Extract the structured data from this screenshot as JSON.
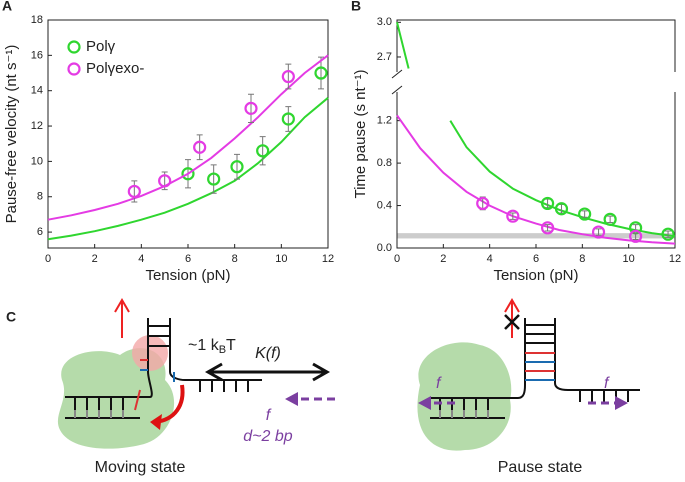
{
  "chart_data": [
    {
      "type": "scatter",
      "panel_label": "A",
      "xlabel": "Tension (pN)",
      "ylabel": "Pause-free velocity (nt s⁻¹)",
      "xlim": [
        0,
        12
      ],
      "xticks": [
        0,
        2,
        4,
        6,
        8,
        10,
        12
      ],
      "ylim": [
        5.1,
        18
      ],
      "yticks": [
        6,
        8,
        10,
        12,
        14,
        16,
        18
      ],
      "legend": "upper left",
      "series": [
        {
          "name": "Polγ",
          "color": "#2fd62f",
          "x": [
            6.0,
            7.1,
            8.1,
            9.2,
            10.3,
            11.7
          ],
          "values": [
            9.3,
            9.0,
            9.7,
            10.6,
            12.4,
            15.0
          ],
          "errors": [
            0.8,
            0.8,
            0.7,
            0.8,
            0.7,
            0.9
          ],
          "fit_x": [
            0,
            1,
            2,
            3,
            4,
            5,
            6,
            7,
            8,
            9,
            10,
            11,
            12
          ],
          "fit_values": [
            5.6,
            5.8,
            6.05,
            6.35,
            6.7,
            7.1,
            7.6,
            8.2,
            8.9,
            9.9,
            11.1,
            12.5,
            13.6
          ]
        },
        {
          "name": "Polγexo-",
          "color": "#e43be4",
          "x": [
            3.7,
            5.0,
            6.5,
            8.7,
            10.3
          ],
          "values": [
            8.3,
            8.9,
            10.8,
            13.0,
            14.8
          ],
          "errors": [
            0.6,
            0.5,
            0.7,
            0.8,
            0.7
          ],
          "fit_x": [
            0,
            1,
            2,
            3,
            4,
            5,
            6,
            7,
            8,
            9,
            10,
            11,
            12
          ],
          "fit_values": [
            6.7,
            6.95,
            7.25,
            7.6,
            8.05,
            8.6,
            9.3,
            10.2,
            11.3,
            12.5,
            13.8,
            15.0,
            16.0
          ]
        }
      ]
    },
    {
      "type": "scatter",
      "panel_label": "B",
      "xlabel": "Tension (pN)",
      "ylabel": "Time pause (s nt⁻¹)",
      "xlim": [
        0,
        12
      ],
      "xticks": [
        0,
        2,
        4,
        6,
        8,
        10,
        12
      ],
      "ylim": [
        0,
        1.47
      ],
      "yticks": [
        {
          "value": 0,
          "label": "0.0"
        },
        0.4,
        0.8,
        1.2
      ],
      "y_break": {
        "ylim": [
          2.57,
          3.02
        ],
        "yticks": [
          2.7,
          {
            "value": 3,
            "label": "3.0"
          }
        ]
      },
      "band": [
        0.09,
        0.14
      ],
      "band_color": "#cccccc",
      "series": [
        {
          "color": "#2fd62f",
          "x": [
            6.5,
            7.1,
            8.1,
            9.2,
            10.3,
            11.7
          ],
          "values": [
            0.42,
            0.37,
            0.32,
            0.27,
            0.19,
            0.13
          ],
          "errors": [
            0.04,
            0.04,
            0.03,
            0.03,
            0.03,
            0.03
          ],
          "fit_x": [
            0,
            0.25,
            0.5,
            1.4,
            2.3,
            3,
            4,
            5,
            6,
            7,
            8,
            9,
            10,
            11,
            12
          ],
          "fit_values": [
            3.0,
            2.8,
            2.6,
            null,
            1.2,
            0.95,
            0.72,
            0.56,
            0.45,
            0.36,
            0.29,
            0.23,
            0.18,
            0.14,
            0.11
          ]
        },
        {
          "color": "#e43be4",
          "x": [
            3.7,
            5.0,
            6.5,
            8.7,
            10.3
          ],
          "values": [
            0.42,
            0.3,
            0.19,
            0.15,
            0.11
          ],
          "errors": [
            0.06,
            0.03,
            0.03,
            0.03,
            0.03
          ],
          "fit_x": [
            0,
            1,
            2,
            3,
            4,
            5,
            6,
            7,
            8,
            9,
            10,
            11,
            12
          ],
          "fit_values": [
            1.25,
            0.94,
            0.71,
            0.53,
            0.4,
            0.3,
            0.23,
            0.17,
            0.13,
            0.096,
            0.072,
            0.054,
            0.041
          ]
        }
      ]
    }
  ],
  "diagram": {
    "panel_label": "C",
    "energy": {
      "prefix": "~1 k",
      "sub": "B",
      "suffix": "T"
    },
    "rate": "K(f)",
    "force_middle": "f",
    "step": "d~2 bp",
    "force_left": "f",
    "force_right": "f",
    "moving_label": "Moving state",
    "pause_label": "Pause state"
  }
}
